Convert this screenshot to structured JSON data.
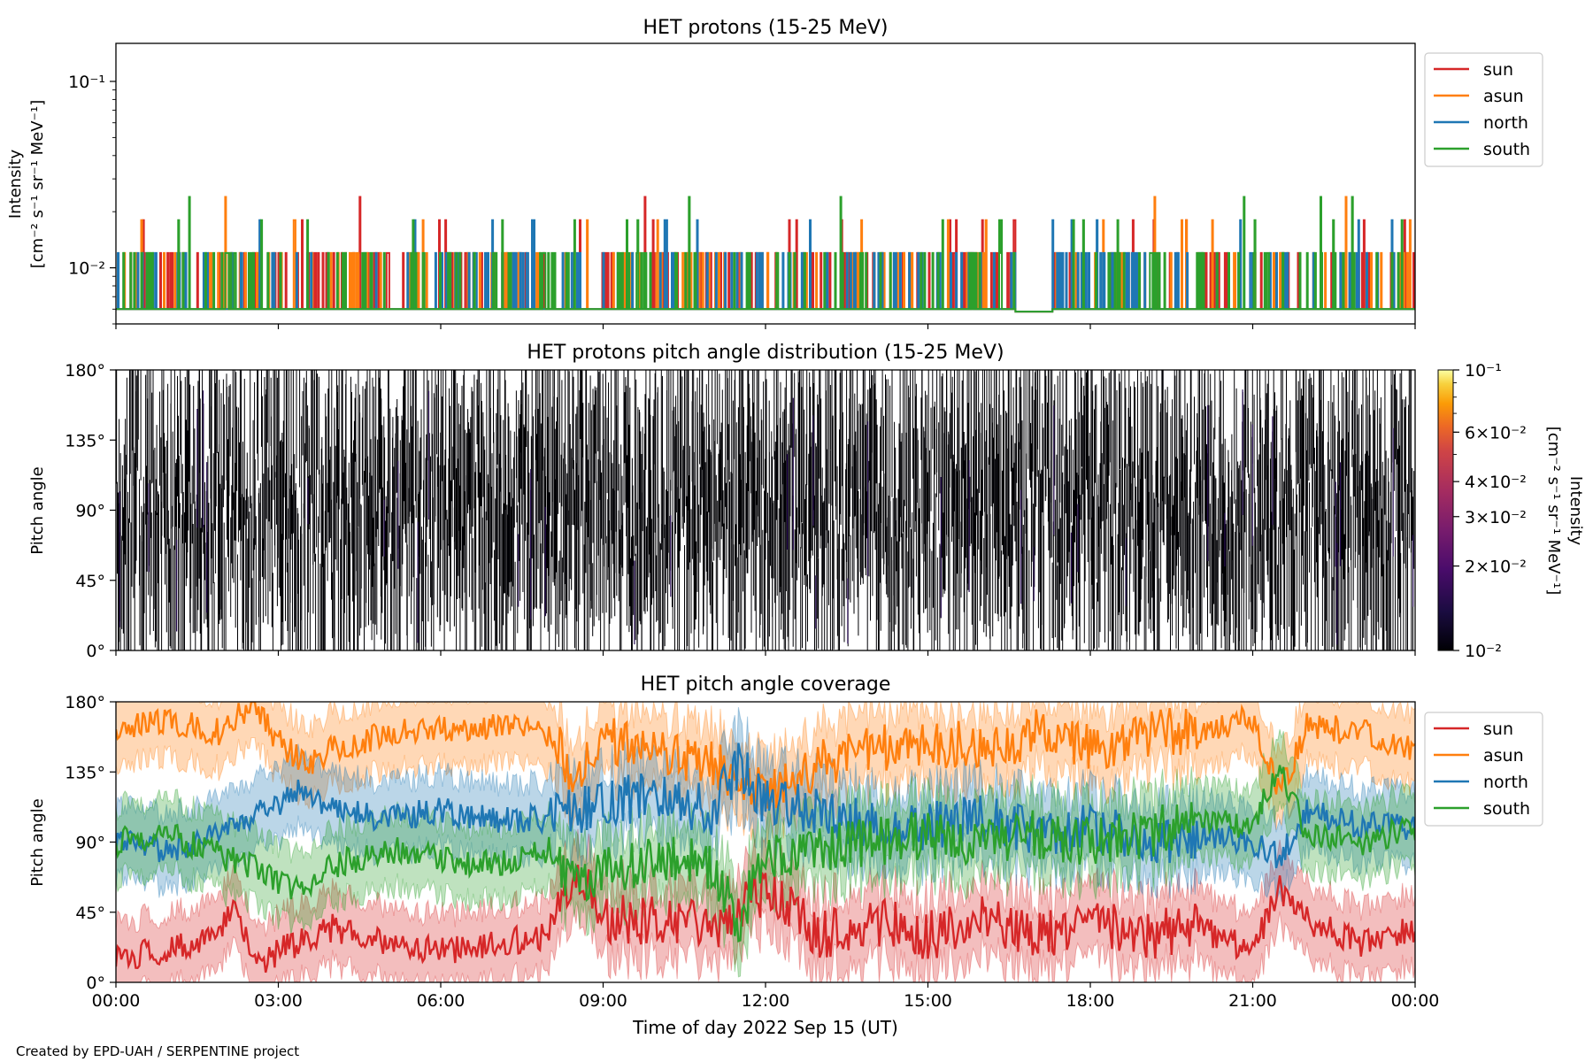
{
  "footer": "Created by EPD-UAH / SERPENTINE project",
  "xaxis": {
    "label": "Time of day 2022 Sep 15 (UT)",
    "ticks": [
      "00:00",
      "03:00",
      "06:00",
      "09:00",
      "12:00",
      "15:00",
      "18:00",
      "21:00",
      "00:00"
    ],
    "range_hours": [
      0,
      24
    ]
  },
  "colors": {
    "sun": "#d62728",
    "asun": "#ff7f0e",
    "north": "#1f77b4",
    "south": "#2ca02c"
  },
  "chart_data": [
    {
      "type": "line",
      "title": "HET protons (15-25 MeV)",
      "ylabel_line1": "Intensity",
      "ylabel_line2": "[cm⁻² s⁻¹ sr⁻¹ MeV⁻¹]",
      "yscale": "log",
      "ylim": [
        0.005,
        0.16
      ],
      "yticks": [
        {
          "value": 0.1,
          "label": "10⁻¹"
        },
        {
          "value": 0.01,
          "label": "10⁻²"
        }
      ],
      "legend_position": "outside-right-top",
      "series": [
        {
          "name": "sun",
          "baseline": 0.006,
          "spike_levels": [
            0.012,
            0.018,
            0.024
          ]
        },
        {
          "name": "asun",
          "baseline": 0.006,
          "spike_levels": [
            0.012,
            0.018,
            0.024
          ]
        },
        {
          "name": "north",
          "baseline": 0.006,
          "spike_levels": [
            0.012,
            0.018
          ]
        },
        {
          "name": "south",
          "baseline": 0.006,
          "spike_levels": [
            0.012,
            0.018,
            0.024
          ]
        }
      ]
    },
    {
      "type": "heatmap",
      "title": "HET protons pitch angle distribution (15-25 MeV)",
      "ylabel": "Pitch angle",
      "ylim": [
        0,
        180
      ],
      "yticks": [
        {
          "value": 0,
          "label": "0°"
        },
        {
          "value": 45,
          "label": "45°"
        },
        {
          "value": 90,
          "label": "90°"
        },
        {
          "value": 135,
          "label": "135°"
        },
        {
          "value": 180,
          "label": "180°"
        }
      ],
      "colorbar": {
        "label_line1": "Intensity",
        "label_line2": "[cm⁻² s⁻¹ sr⁻¹ MeV⁻¹]",
        "scale": "log",
        "range": [
          0.01,
          0.1
        ],
        "colormap": "inferno",
        "ticks": [
          {
            "value": 0.1,
            "label": "10⁻¹"
          },
          {
            "value": 0.06,
            "label": "6×10⁻²"
          },
          {
            "value": 0.04,
            "label": "4×10⁻²"
          },
          {
            "value": 0.03,
            "label": "3×10⁻²"
          },
          {
            "value": 0.02,
            "label": "2×10⁻²"
          },
          {
            "value": 0.01,
            "label": "10⁻²"
          }
        ]
      }
    },
    {
      "type": "line",
      "title": "HET pitch angle coverage",
      "ylabel": "Pitch angle",
      "ylim": [
        0,
        180
      ],
      "yticks": [
        {
          "value": 0,
          "label": "0°"
        },
        {
          "value": 45,
          "label": "45°"
        },
        {
          "value": 90,
          "label": "90°"
        },
        {
          "value": 135,
          "label": "135°"
        },
        {
          "value": 180,
          "label": "180°"
        }
      ],
      "legend_position": "outside-right-top",
      "band_halfwidth": 23,
      "series": [
        {
          "name": "sun",
          "keypoints": [
            [
              0,
              15
            ],
            [
              1.5,
              25
            ],
            [
              2.2,
              45
            ],
            [
              2.6,
              10
            ],
            [
              3,
              20
            ],
            [
              4,
              35
            ],
            [
              5,
              25
            ],
            [
              6,
              20
            ],
            [
              7,
              25
            ],
            [
              8,
              30
            ],
            [
              8.5,
              75
            ],
            [
              9,
              40
            ],
            [
              10,
              40
            ],
            [
              11,
              35
            ],
            [
              12,
              60
            ],
            [
              13,
              30
            ],
            [
              14,
              40
            ],
            [
              15,
              30
            ],
            [
              16,
              40
            ],
            [
              17,
              30
            ],
            [
              18,
              40
            ],
            [
              19,
              30
            ],
            [
              20,
              35
            ],
            [
              21,
              20
            ],
            [
              21.5,
              60
            ],
            [
              22,
              40
            ],
            [
              23,
              25
            ],
            [
              24,
              35
            ]
          ]
        },
        {
          "name": "asun",
          "keypoints": [
            [
              0,
              165
            ],
            [
              1,
              168
            ],
            [
              2,
              160
            ],
            [
              2.5,
              180
            ],
            [
              3,
              155
            ],
            [
              3.5,
              140
            ],
            [
              4,
              150
            ],
            [
              5,
              160
            ],
            [
              6,
              163
            ],
            [
              7,
              165
            ],
            [
              8,
              160
            ],
            [
              8.5,
              130
            ],
            [
              9,
              155
            ],
            [
              10,
              150
            ],
            [
              11,
              140
            ],
            [
              12,
              120
            ],
            [
              13,
              140
            ],
            [
              14,
              150
            ],
            [
              15,
              155
            ],
            [
              16,
              150
            ],
            [
              17,
              160
            ],
            [
              18,
              150
            ],
            [
              19,
              160
            ],
            [
              20,
              160
            ],
            [
              21,
              170
            ],
            [
              21.5,
              120
            ],
            [
              22,
              165
            ],
            [
              23,
              160
            ],
            [
              24,
              150
            ]
          ]
        },
        {
          "name": "north",
          "keypoints": [
            [
              0,
              90
            ],
            [
              1,
              85
            ],
            [
              2,
              95
            ],
            [
              2.5,
              105
            ],
            [
              3,
              115
            ],
            [
              3.5,
              125
            ],
            [
              4,
              110
            ],
            [
              5,
              105
            ],
            [
              6,
              110
            ],
            [
              7,
              105
            ],
            [
              8,
              105
            ],
            [
              8.5,
              110
            ],
            [
              9,
              115
            ],
            [
              10,
              120
            ],
            [
              11,
              110
            ],
            [
              11.5,
              140
            ],
            [
              12,
              115
            ],
            [
              13,
              110
            ],
            [
              14,
              100
            ],
            [
              15,
              100
            ],
            [
              16,
              105
            ],
            [
              17,
              95
            ],
            [
              18,
              100
            ],
            [
              19,
              90
            ],
            [
              20,
              95
            ],
            [
              21,
              90
            ],
            [
              21.5,
              80
            ],
            [
              22,
              110
            ],
            [
              23,
              100
            ],
            [
              24,
              100
            ]
          ]
        },
        {
          "name": "south",
          "keypoints": [
            [
              0,
              90
            ],
            [
              1,
              95
            ],
            [
              2,
              80
            ],
            [
              2.5,
              75
            ],
            [
              3,
              65
            ],
            [
              3.5,
              55
            ],
            [
              4,
              75
            ],
            [
              5,
              85
            ],
            [
              6,
              80
            ],
            [
              7,
              75
            ],
            [
              8,
              85
            ],
            [
              8.5,
              60
            ],
            [
              9,
              70
            ],
            [
              10,
              80
            ],
            [
              11,
              75
            ],
            [
              11.5,
              40
            ],
            [
              12,
              80
            ],
            [
              13,
              85
            ],
            [
              14,
              90
            ],
            [
              15,
              95
            ],
            [
              16,
              90
            ],
            [
              17,
              95
            ],
            [
              18,
              90
            ],
            [
              19,
              95
            ],
            [
              20,
              105
            ],
            [
              21,
              100
            ],
            [
              21.5,
              140
            ],
            [
              22,
              95
            ],
            [
              23,
              90
            ],
            [
              24,
              100
            ]
          ]
        }
      ]
    }
  ]
}
